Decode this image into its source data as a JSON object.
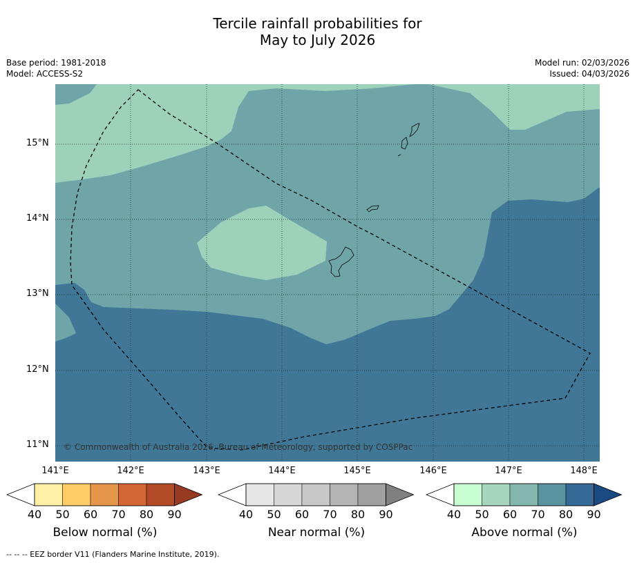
{
  "title_line1": "Tercile rainfall probabilities for",
  "title_line2": "May to July 2026",
  "base_period": "Base period: 1981-2018",
  "model": "Model: ACCESS-S2",
  "model_run": "Model run: 02/03/2026",
  "issued": "Issued: 04/03/2026",
  "copyright": "© Commonwealth of Australia 2026, Bureau of Meteorology, supported by COSPPac",
  "footnote": "--  --  -- EEZ border V11 (Flanders Marine Institute, 2019).",
  "axes": {
    "y_ticks": [
      "15°N",
      "14°N",
      "13°N",
      "12°N",
      "11°N"
    ],
    "x_ticks": [
      "141°E",
      "142°E",
      "143°E",
      "144°E",
      "145°E",
      "146°E",
      "147°E",
      "148°E"
    ]
  },
  "colors": {
    "above_50": "#9dd1ba",
    "above_60": "#6fa5a8",
    "above_80": "#417796"
  },
  "colorbars": [
    {
      "label": "Below normal (%)",
      "ticks": [
        "40",
        "50",
        "60",
        "70",
        "80",
        "90"
      ],
      "colors": [
        "#fff0a5",
        "#ffcc66",
        "#e6964a",
        "#d46636",
        "#b34a27",
        "#973a22"
      ]
    },
    {
      "label": "Near normal (%)",
      "ticks": [
        "40",
        "50",
        "60",
        "70",
        "80",
        "90"
      ],
      "colors": [
        "#e6e6e6",
        "#d6d6d6",
        "#c8c8c8",
        "#b4b4b4",
        "#a0a0a0",
        "#808080"
      ]
    },
    {
      "label": "Above normal (%)",
      "ticks": [
        "40",
        "50",
        "60",
        "70",
        "80",
        "90"
      ],
      "colors": [
        "#c8ffd2",
        "#a6d6bc",
        "#84b8ae",
        "#5a93a0",
        "#356a96",
        "#1a4a82"
      ]
    }
  ]
}
